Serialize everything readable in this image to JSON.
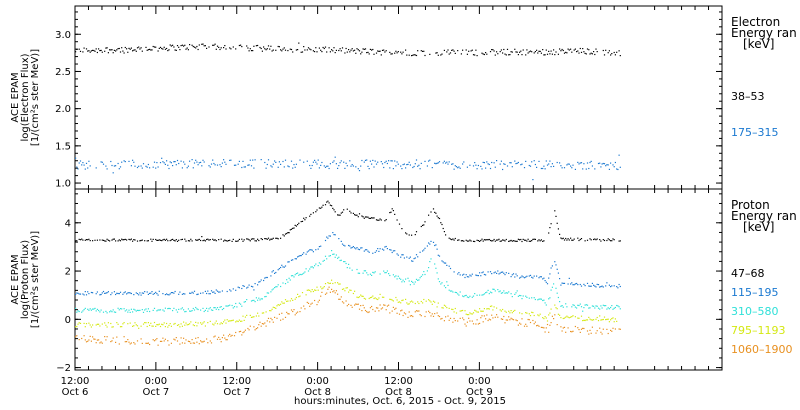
{
  "chart_data": [
    {
      "type": "scatter",
      "panel": "electron",
      "ylabel": [
        "ACE EPAM",
        "log(Electron Flux)",
        "[1/(cm²s ster MeV)]"
      ],
      "legend_title": [
        "Electron",
        "Energy ran",
        "[keV]"
      ],
      "ylim": [
        0.92,
        3.38
      ],
      "yticks": [
        1.0,
        1.5,
        2.0,
        2.5,
        3.0
      ],
      "ytick_labels": [
        "1.0",
        "1.5",
        "2.0",
        "2.5",
        "3.0"
      ],
      "series": [
        {
          "name": "38–53",
          "color": "#000000",
          "noise": 0.04,
          "profile": [
            [
              0,
              2.79
            ],
            [
              6,
              2.8
            ],
            [
              12,
              2.82
            ],
            [
              18,
              2.84
            ],
            [
              24,
              2.83
            ],
            [
              30,
              2.81
            ],
            [
              36,
              2.8
            ],
            [
              42,
              2.78
            ],
            [
              48,
              2.76
            ],
            [
              54,
              2.76
            ],
            [
              60,
              2.76
            ],
            [
              66,
              2.77
            ],
            [
              70,
              2.77
            ],
            [
              75,
              2.78
            ],
            [
              81,
              2.76
            ]
          ]
        },
        {
          "name": "175–315",
          "color": "#1a78d0",
          "noise": 0.06,
          "profile": [
            [
              0,
              1.25
            ],
            [
              12,
              1.26
            ],
            [
              24,
              1.27
            ],
            [
              36,
              1.26
            ],
            [
              48,
              1.26
            ],
            [
              60,
              1.25
            ],
            [
              70,
              1.25
            ],
            [
              81,
              1.24
            ]
          ]
        }
      ]
    },
    {
      "type": "scatter",
      "panel": "proton",
      "ylabel": [
        "ACE EPAM",
        "log(Proton Flux)",
        "[1/(cm²s ster MeV)]"
      ],
      "legend_title": [
        "Proton",
        "Energy ran",
        "[keV]"
      ],
      "ylim": [
        -2.1,
        5.4
      ],
      "yticks": [
        -2,
        0,
        2,
        4
      ],
      "ytick_labels": [
        "−2",
        "0",
        "2",
        "4"
      ],
      "series": [
        {
          "name": "47–68",
          "color": "#000000",
          "noise": 0.05,
          "profile": [
            [
              0,
              3.3
            ],
            [
              24,
              3.3
            ],
            [
              30,
              3.35
            ],
            [
              31.5,
              3.6
            ],
            [
              33,
              4.0
            ],
            [
              34.5,
              4.3
            ],
            [
              36,
              4.6
            ],
            [
              37.5,
              4.9
            ],
            [
              39,
              4.3
            ],
            [
              40,
              4.6
            ],
            [
              42,
              4.3
            ],
            [
              44,
              4.2
            ],
            [
              46,
              4.1
            ],
            [
              47,
              4.6
            ],
            [
              48,
              4.0
            ],
            [
              49,
              3.6
            ],
            [
              50,
              3.5
            ],
            [
              51,
              3.7
            ],
            [
              52,
              4.1
            ],
            [
              53,
              4.6
            ],
            [
              54,
              4.2
            ],
            [
              55,
              3.4
            ],
            [
              57,
              3.3
            ],
            [
              70,
              3.3
            ],
            [
              71,
              4.6
            ],
            [
              72,
              3.35
            ],
            [
              81,
              3.3
            ]
          ]
        },
        {
          "name": "115–195",
          "color": "#1a78d0",
          "noise": 0.08,
          "profile": [
            [
              0,
              1.1
            ],
            [
              14,
              1.1
            ],
            [
              20,
              1.15
            ],
            [
              24,
              1.3
            ],
            [
              27,
              1.5
            ],
            [
              30,
              2.1
            ],
            [
              33,
              2.6
            ],
            [
              36,
              3.0
            ],
            [
              38,
              3.6
            ],
            [
              40,
              3.1
            ],
            [
              42,
              3.0
            ],
            [
              44,
              2.8
            ],
            [
              46,
              3.0
            ],
            [
              48,
              2.7
            ],
            [
              50,
              2.5
            ],
            [
              52,
              3.0
            ],
            [
              53,
              3.3
            ],
            [
              54,
              2.6
            ],
            [
              56,
              2.0
            ],
            [
              58,
              1.8
            ],
            [
              60,
              1.9
            ],
            [
              62,
              2.0
            ],
            [
              64,
              1.9
            ],
            [
              66,
              1.8
            ],
            [
              69,
              1.8
            ],
            [
              70,
              1.5
            ],
            [
              71,
              2.6
            ],
            [
              72,
              1.5
            ],
            [
              81,
              1.4
            ]
          ]
        },
        {
          "name": "310–580",
          "color": "#2fe0d8",
          "noise": 0.09,
          "profile": [
            [
              0,
              0.4
            ],
            [
              14,
              0.4
            ],
            [
              20,
              0.45
            ],
            [
              24,
              0.6
            ],
            [
              27,
              0.8
            ],
            [
              30,
              1.4
            ],
            [
              33,
              1.9
            ],
            [
              36,
              2.3
            ],
            [
              38,
              2.8
            ],
            [
              40,
              2.3
            ],
            [
              42,
              2.0
            ],
            [
              44,
              1.9
            ],
            [
              46,
              2.0
            ],
            [
              48,
              1.7
            ],
            [
              50,
              1.5
            ],
            [
              52,
              2.0
            ],
            [
              53,
              2.6
            ],
            [
              54,
              1.6
            ],
            [
              56,
              1.2
            ],
            [
              58,
              1.0
            ],
            [
              60,
              1.1
            ],
            [
              62,
              1.2
            ],
            [
              64,
              1.1
            ],
            [
              66,
              1.0
            ],
            [
              69,
              0.9
            ],
            [
              70,
              0.6
            ],
            [
              71,
              1.6
            ],
            [
              72,
              0.6
            ],
            [
              81,
              0.5
            ]
          ]
        },
        {
          "name": "795–1193",
          "color": "#d4e812",
          "noise": 0.1,
          "profile": [
            [
              0,
              -0.2
            ],
            [
              14,
              -0.2
            ],
            [
              20,
              -0.15
            ],
            [
              24,
              0.0
            ],
            [
              27,
              0.2
            ],
            [
              30,
              0.6
            ],
            [
              33,
              1.0
            ],
            [
              36,
              1.3
            ],
            [
              38,
              1.6
            ],
            [
              40,
              1.3
            ],
            [
              42,
              1.0
            ],
            [
              44,
              0.9
            ],
            [
              46,
              1.0
            ],
            [
              48,
              0.8
            ],
            [
              50,
              0.7
            ],
            [
              52,
              0.8
            ],
            [
              54,
              0.6
            ],
            [
              56,
              0.4
            ],
            [
              58,
              0.3
            ],
            [
              60,
              0.4
            ],
            [
              62,
              0.5
            ],
            [
              64,
              0.4
            ],
            [
              66,
              0.3
            ],
            [
              69,
              0.2
            ],
            [
              70,
              0.0
            ],
            [
              71,
              0.7
            ],
            [
              72,
              0.1
            ],
            [
              81,
              0.0
            ]
          ]
        },
        {
          "name": "1060–1900",
          "color": "#e89020",
          "noise": 0.16,
          "profile": [
            [
              0,
              -0.8
            ],
            [
              14,
              -0.9
            ],
            [
              20,
              -0.85
            ],
            [
              24,
              -0.6
            ],
            [
              27,
              -0.3
            ],
            [
              30,
              0.1
            ],
            [
              33,
              0.4
            ],
            [
              36,
              0.8
            ],
            [
              38,
              1.3
            ],
            [
              40,
              0.7
            ],
            [
              42,
              0.5
            ],
            [
              44,
              0.4
            ],
            [
              46,
              0.5
            ],
            [
              48,
              0.3
            ],
            [
              50,
              0.2
            ],
            [
              52,
              0.3
            ],
            [
              54,
              0.2
            ],
            [
              56,
              0.0
            ],
            [
              58,
              -0.1
            ],
            [
              60,
              0.0
            ],
            [
              62,
              0.2
            ],
            [
              64,
              0.0
            ],
            [
              66,
              -0.1
            ],
            [
              69,
              -0.2
            ],
            [
              70,
              -0.5
            ],
            [
              71,
              0.2
            ],
            [
              72,
              -0.4
            ],
            [
              81,
              -0.5
            ]
          ]
        }
      ]
    }
  ],
  "x_axis": {
    "range_hours": [
      0,
      96
    ],
    "ticks": [
      {
        "h": 0,
        "time": "12:00",
        "date": "Oct 6"
      },
      {
        "h": 12,
        "time": "0:00",
        "date": "Oct 7"
      },
      {
        "h": 24,
        "time": "12:00",
        "date": "Oct 7"
      },
      {
        "h": 36,
        "time": "0:00",
        "date": "Oct 8"
      },
      {
        "h": 48,
        "time": "12:00",
        "date": "Oct 8"
      },
      {
        "h": 60,
        "time": "0:00",
        "date": "Oct 9"
      }
    ],
    "label": "hours:minutes, Oct.  6, 2015 - Oct.  9, 2015",
    "data_end_hours": 81
  }
}
